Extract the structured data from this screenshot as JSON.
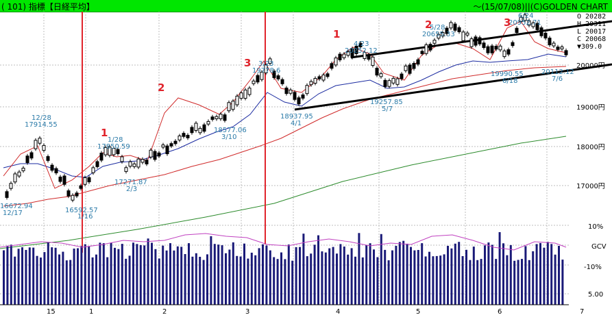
{
  "header": {
    "left": "( 101) 指標【日経平均】",
    "right": "～(15/07/08)||(C)GOLDEN CHART"
  },
  "ohlc": {
    "open": "O 20282",
    "high": "H 20311",
    "low": "L 20017",
    "close": "C 20068",
    "change": "▼309.0"
  },
  "chart_data": [
    {
      "type": "candlestick",
      "title": "指標【日経平均】",
      "x_ticks": [
        "15",
        "1",
        "2",
        "3",
        "4",
        "5",
        "6",
        "7"
      ],
      "y_ticks": [
        "20000円",
        "19000円",
        "18000円",
        "17000円"
      ],
      "ylim": [
        16300,
        21050
      ],
      "price_points": [
        {
          "date": "12/17",
          "value": 16672.94
        },
        {
          "date": "12/28",
          "value": 17914.55
        },
        {
          "date": "1/16",
          "value": 16592.57
        },
        {
          "date": "1/28",
          "value": 17850.59
        },
        {
          "date": "2/3",
          "value": 17271.87
        },
        {
          "date": "3/10",
          "value": 18577.06
        },
        {
          "date": "3/23",
          "value": 19778.6
        },
        {
          "date": "4/1",
          "value": 18937.95
        },
        {
          "date": "4/23",
          "value": 20252.12
        },
        {
          "date": "5/7",
          "value": 19257.85
        },
        {
          "date": "5/28",
          "value": 20655.33
        },
        {
          "date": "6/18",
          "value": 19990.55
        },
        {
          "date": "6/24",
          "value": 20952.71
        },
        {
          "date": "7/6",
          "value": 20112.12
        }
      ],
      "annotations": [
        {
          "text": "12/17",
          "color": "#2a7aa8"
        },
        {
          "text": "12/28",
          "color": "#2a7aa8"
        },
        {
          "text": "1/16",
          "color": "#2a7aa8"
        },
        {
          "text": "1/28",
          "color": "#2a7aa8"
        },
        {
          "text": "2/3",
          "color": "#2a7aa8"
        },
        {
          "text": "3/10",
          "color": "#2a7aa8"
        },
        {
          "text": "3/23",
          "color": "#2a7aa8"
        },
        {
          "text": "4/1",
          "color": "#2a7aa8"
        },
        {
          "text": "4/23",
          "color": "#2a7aa8"
        },
        {
          "text": "5/7",
          "color": "#2a7aa8"
        },
        {
          "text": "5/28",
          "color": "#2a7aa8"
        },
        {
          "text": "6/18",
          "color": "#2a7aa8"
        },
        {
          "text": "6/24",
          "color": "#2a7aa8"
        },
        {
          "text": "7/6",
          "color": "#2a7aa8"
        }
      ],
      "wave_labels": [
        "1",
        "2",
        "3",
        "1",
        "2",
        "3"
      ],
      "moving_averages": [
        {
          "color": "#1a2aa0"
        },
        {
          "color": "#d02a2a"
        },
        {
          "color": "#2a8a2a"
        }
      ]
    },
    {
      "type": "bar",
      "title": "GCV",
      "y_ticks": [
        "10%",
        "-10%",
        "5.00"
      ],
      "bar_color": "#1a1a78",
      "line_color": "#c040c0"
    }
  ]
}
